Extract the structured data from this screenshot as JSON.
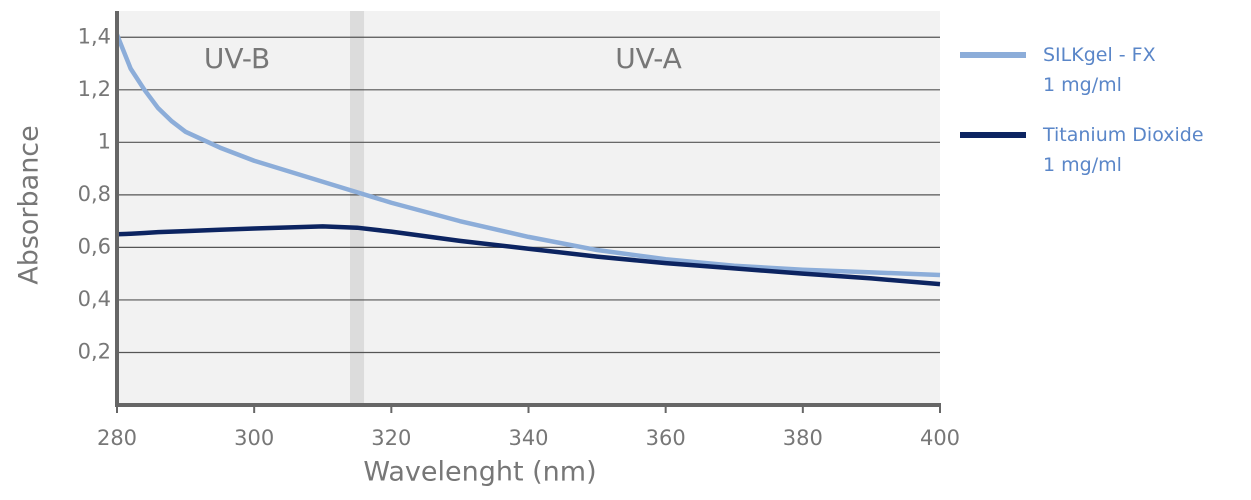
{
  "chart_data": {
    "type": "line",
    "x_label": "Wavelenght (nm)",
    "y_label": "Absorbance",
    "x": [
      280,
      282,
      284,
      286,
      288,
      290,
      295,
      300,
      310,
      315,
      320,
      330,
      340,
      350,
      360,
      370,
      380,
      390,
      400
    ],
    "series": [
      {
        "name": "SILKgel - FX\n1 mg/ml",
        "color": "#8cadd9",
        "values": [
          1.41,
          1.28,
          1.2,
          1.13,
          1.08,
          1.04,
          0.98,
          0.93,
          0.85,
          0.81,
          0.77,
          0.7,
          0.64,
          0.59,
          0.555,
          0.53,
          0.515,
          0.505,
          0.495
        ]
      },
      {
        "name": "Titanium Dioxide\n1 mg/ml",
        "color": "#0c2461",
        "values": [
          0.65,
          0.652,
          0.655,
          0.658,
          0.66,
          0.662,
          0.667,
          0.672,
          0.68,
          0.675,
          0.66,
          0.625,
          0.595,
          0.565,
          0.54,
          0.52,
          0.5,
          0.482,
          0.46
        ]
      }
    ],
    "bands": [
      {
        "label": "UV-B",
        "from": 280,
        "to": 315
      },
      {
        "label": "UV-A",
        "from": 315,
        "to": 400
      }
    ],
    "xlim": [
      280,
      400
    ],
    "ylim": [
      0,
      1.5
    ],
    "xticks": [
      280,
      300,
      320,
      340,
      360,
      380,
      400
    ],
    "yticks": [
      {
        "value": 0.2,
        "label": "0,2"
      },
      {
        "value": 0.4,
        "label": "0,4"
      },
      {
        "value": 0.6,
        "label": "0,6"
      },
      {
        "value": 0.8,
        "label": "0,8"
      },
      1,
      {
        "value": 1.2,
        "label": "1,2"
      },
      {
        "value": 1.4,
        "label": "1,4"
      }
    ],
    "grid": true
  }
}
